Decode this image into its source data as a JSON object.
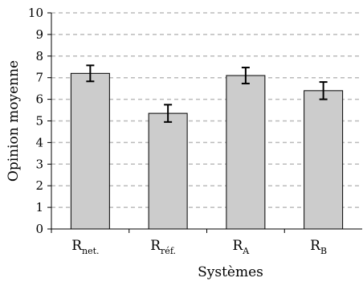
{
  "chart_data": {
    "type": "bar",
    "title": "",
    "xlabel": "Systèmes",
    "ylabel": "Opinion moyenne",
    "categories": [
      {
        "main": "R",
        "sub": "net."
      },
      {
        "main": "R",
        "sub": "réf."
      },
      {
        "main": "R",
        "sub": "A"
      },
      {
        "main": "R",
        "sub": "B"
      }
    ],
    "values": [
      7.2,
      5.35,
      7.1,
      6.4
    ],
    "error": [
      0.37,
      0.4,
      0.37,
      0.4
    ],
    "ylim": [
      0,
      10
    ],
    "yticks": [
      0,
      1,
      2,
      3,
      4,
      5,
      6,
      7,
      8,
      9,
      10
    ],
    "grid": true,
    "bar_color": "#cccccc",
    "grid_color": "#bbbbbb"
  }
}
